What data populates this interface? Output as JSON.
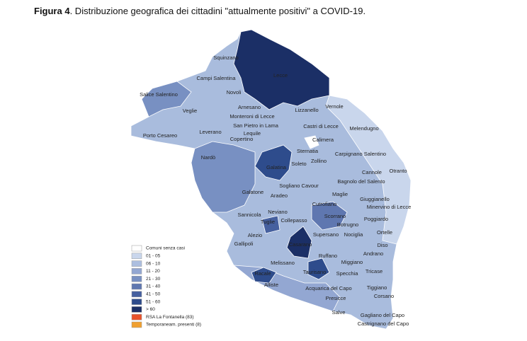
{
  "title": {
    "label": "Figura 4",
    "text": ". Distribuzione  geografica dei cittadini \"attualmente positivi\" a COVID-19."
  },
  "places": [
    "Squinzano",
    "Campi Salentina",
    "Lecce",
    "Novoli",
    "Salice Salentino",
    "Veglie",
    "Arnesano",
    "Vernole",
    "Monteroni di Lecce",
    "Lizzanello",
    "San Pietro in Lama",
    "Castri di Lecce",
    "Melendugno",
    "Leverano",
    "Porto Cesareo",
    "Lequile",
    "Copertino",
    "Calimera",
    "Sternatia",
    "Carpignano Salentino",
    "Nardò",
    "Soleto",
    "Zollino",
    "Galatina",
    "Cannole",
    "Otranto",
    "Bagnolo del Salento",
    "Sogliano Cavour",
    "Galatone",
    "Aradeo",
    "Maglie",
    "Giuggianello",
    "Cutrofiano",
    "Minervino di Lecce",
    "Sannicola",
    "Neviano",
    "Scorrano",
    "Poggiardo",
    "Tuglie",
    "Collepasso",
    "Botrugno",
    "Alezio",
    "Supersano",
    "Nociglia",
    "Ortelle",
    "Gallipoli",
    "Casarano",
    "Diso",
    "Ruffano",
    "Andrano",
    "Melissano",
    "Miggiano",
    "Taurisano",
    "Specchia",
    "Tricase",
    "Racale",
    "Alliste",
    "Acquarica del Capo",
    "Tiggiano",
    "Corsano",
    "Presicce",
    "Salve",
    "Gagliano del Capo",
    "Castrignano del Capo"
  ],
  "legend": [
    {
      "label": "Comuni senza casi",
      "color": "#ffffff"
    },
    {
      "label": "01 - 05",
      "color": "#c9d6ec"
    },
    {
      "label": "06 - 10",
      "color": "#adbfe0"
    },
    {
      "label": "11 - 20",
      "color": "#93a7d2"
    },
    {
      "label": "21 - 30",
      "color": "#7890c2"
    },
    {
      "label": "31 - 40",
      "color": "#5f77b0"
    },
    {
      "label": "41 - 50",
      "color": "#46609f"
    },
    {
      "label": "51 - 60",
      "color": "#2e4c8c"
    },
    {
      "label": "> 60",
      "color": "#1b2f66"
    },
    {
      "label": "RSA La Fontanella (83)",
      "color": "#e8522b"
    },
    {
      "label": "Temporaneam. presenti (8)",
      "color": "#f0a030"
    }
  ]
}
